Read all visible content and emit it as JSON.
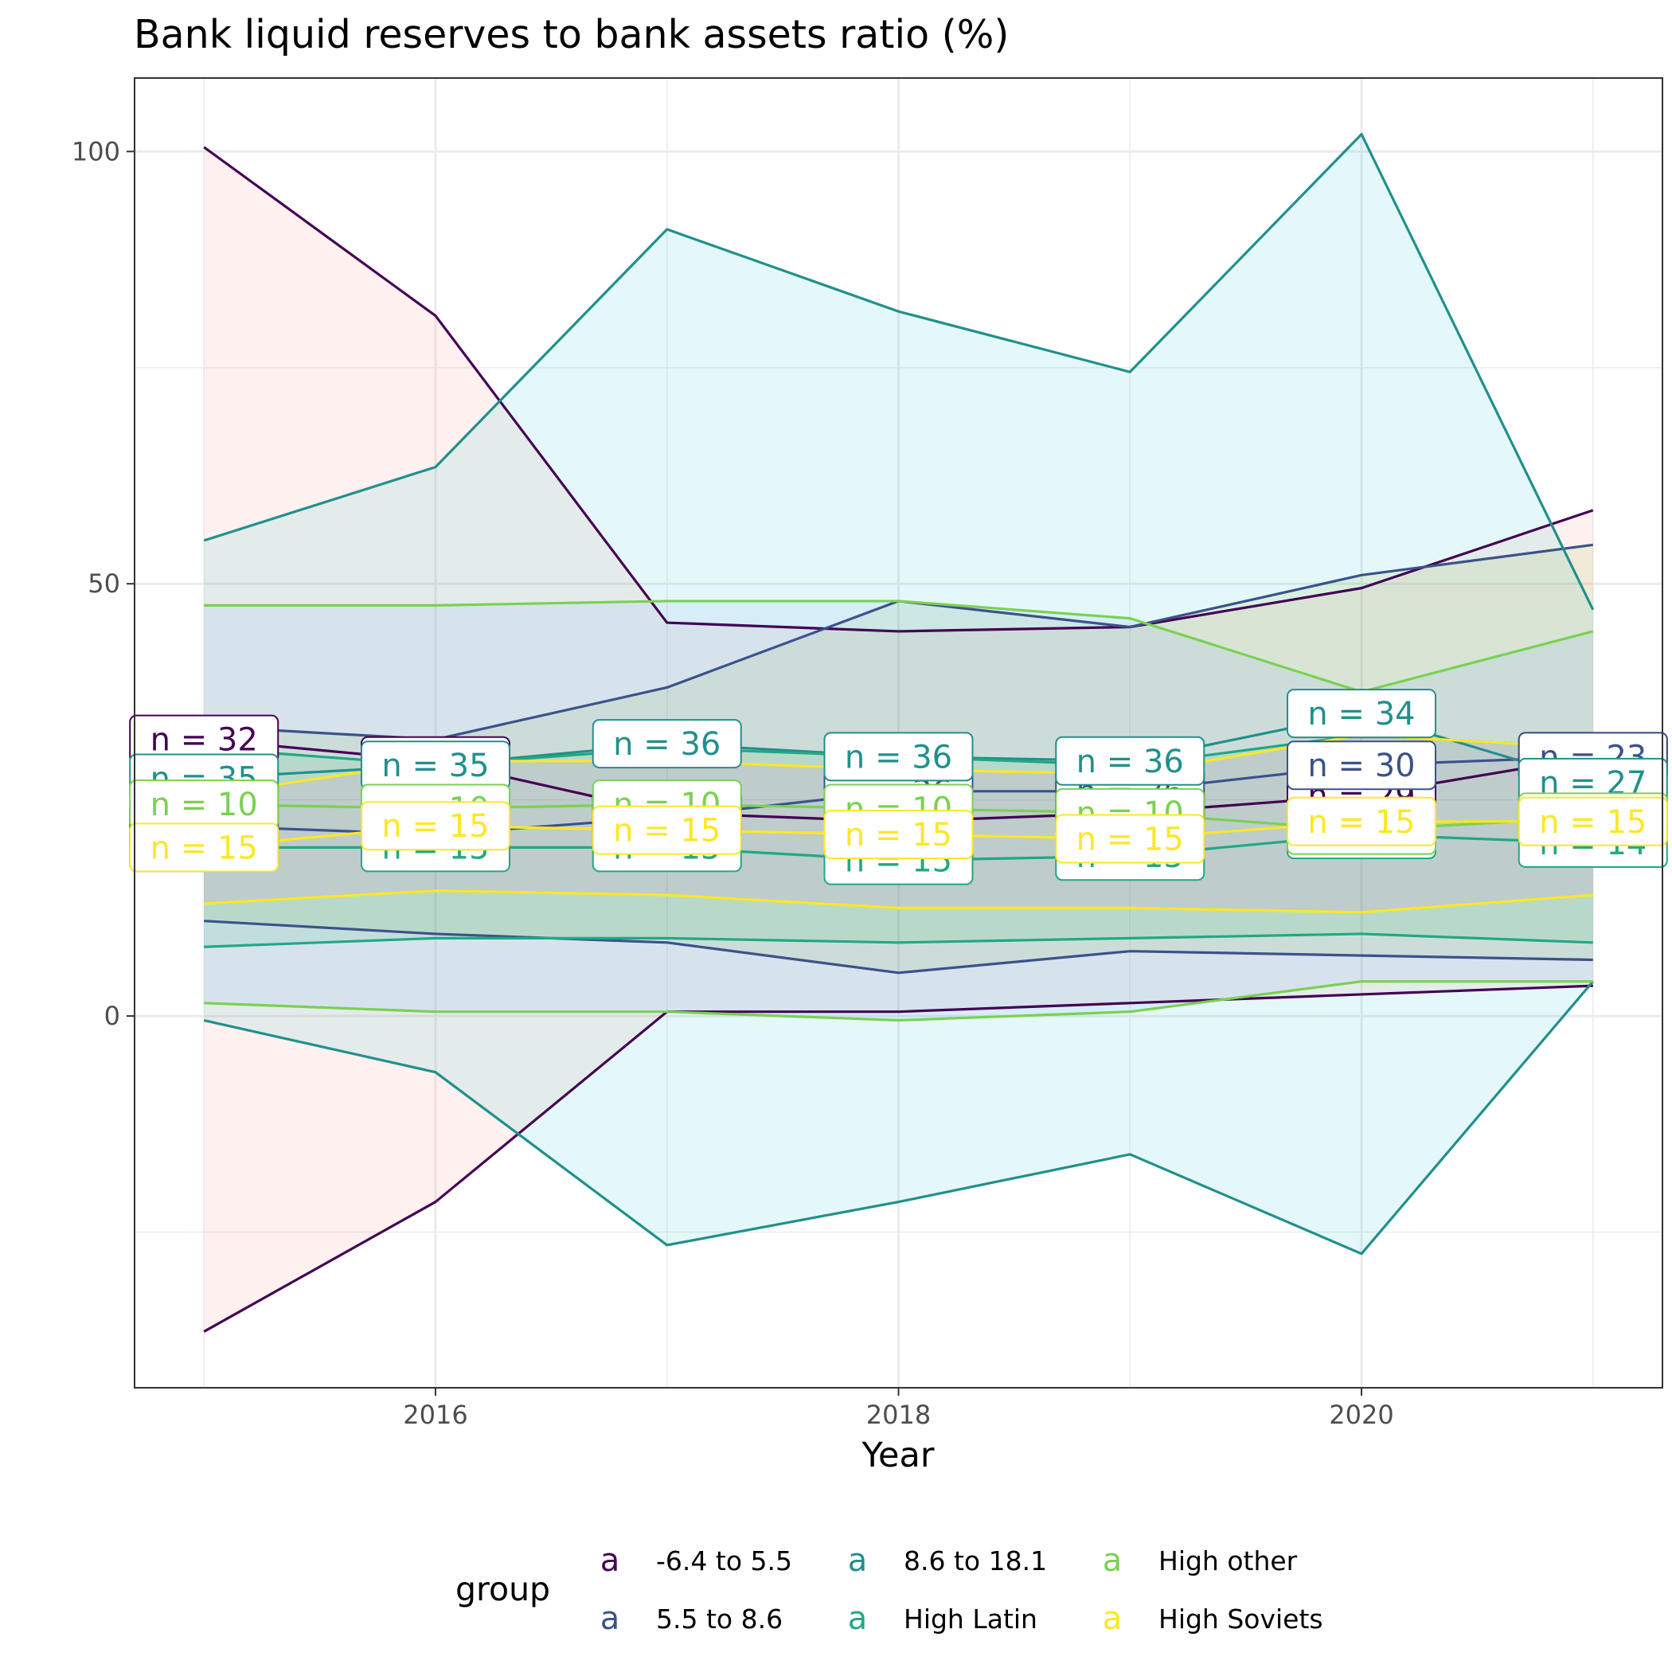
{
  "chart_data": {
    "type": "line",
    "title": "Bank liquid reserves to bank assets ratio (%)",
    "xlabel": "Year",
    "ylabel": "",
    "x": [
      2015,
      2016,
      2017,
      2018,
      2019,
      2020,
      2021
    ],
    "xlim": [
      2014.7,
      2021.3
    ],
    "ylim": [
      -43,
      108.5
    ],
    "x_ticks": [
      2016,
      2018,
      2020
    ],
    "x_tick_labels": [
      "2016",
      "2018",
      "2020"
    ],
    "y_ticks": [
      0,
      50,
      100
    ],
    "y_tick_labels": [
      "0",
      "50",
      "100"
    ],
    "y_minor_ticks": [
      -25,
      25,
      75
    ],
    "grid": true,
    "legend": {
      "title": "group",
      "position": "bottom",
      "key_glyph": "a"
    },
    "series": [
      {
        "name": "-6.4 to 5.5",
        "color": "#440154",
        "fill": "#F8766D",
        "mean": [
          32,
          29.5,
          23.5,
          22.5,
          23.5,
          25.5,
          30
        ],
        "upper": [
          100.5,
          81,
          45.5,
          44.5,
          45,
          49.5,
          58.5
        ],
        "lower": [
          -36.5,
          -21.5,
          0.5,
          0.5,
          1.5,
          2.5,
          3.5
        ],
        "n": [
          "n = 32",
          "n = 31",
          "n = 31",
          "n = 31",
          "n = 31",
          "n = 29",
          "n = 23"
        ]
      },
      {
        "name": "5.5 to 8.6",
        "color": "#3B528B",
        "fill": "#7CAE00",
        "mean": [
          22,
          21,
          23,
          26,
          26,
          29,
          30
        ],
        "upper": [
          33.5,
          32,
          38,
          48,
          45,
          51,
          54.5
        ],
        "lower": [
          11,
          9.5,
          8.5,
          5,
          7.5,
          7,
          6.5
        ],
        "n": [
          "n = 34",
          "n = 35",
          "n = 36",
          "n = 36",
          "n = 36",
          "n = 30",
          "n = 23"
        ]
      },
      {
        "name": "8.6 to 18.1",
        "color": "#21908C",
        "fill": "#00BFC4",
        "mean": [
          27.5,
          29,
          31.5,
          30,
          29.5,
          35,
          27
        ],
        "upper": [
          55,
          63.5,
          91,
          81.5,
          74.5,
          102,
          47
        ],
        "lower": [
          -0.5,
          -6.5,
          -26.5,
          -21.5,
          -16,
          -27.5,
          4
        ],
        "n": [
          "n = 35",
          "n = 35",
          "n = 36",
          "n = 36",
          "n = 36",
          "n = 34",
          "n = 27"
        ]
      },
      {
        "name": "High Latin",
        "color": "#22A884",
        "fill": "#00BA38",
        "mean": [
          19.5,
          19.5,
          19.5,
          18,
          18.5,
          21,
          20
        ],
        "upper": [
          31,
          29,
          31,
          30,
          29,
          32.5,
          31
        ],
        "lower": [
          8,
          9,
          9,
          8.5,
          9,
          9.5,
          8.5
        ],
        "n": [
          "n = 15",
          "n = 15",
          "n = 15",
          "n = 15",
          "n = 15",
          "n = 15",
          "n = 14"
        ]
      },
      {
        "name": "High other",
        "color": "#7AD151",
        "fill": "#619CFF",
        "mean": [
          24.5,
          24,
          24.5,
          24,
          23.5,
          21.5,
          23
        ],
        "upper": [
          47.5,
          47.5,
          48,
          48,
          46,
          37.5,
          44.5
        ],
        "lower": [
          1.5,
          0.5,
          0.5,
          -0.5,
          0.5,
          4,
          4
        ],
        "n": [
          "n = 10",
          "n = 10",
          "n = 10",
          "n = 10",
          "n = 10",
          "n = 10",
          "n = 10"
        ]
      },
      {
        "name": "High Soviets",
        "color": "#FDE725",
        "fill": "#F564E3",
        "mean": [
          19.5,
          22,
          21.5,
          21,
          20.5,
          22.5,
          22.5
        ],
        "upper": [
          25.5,
          29.5,
          29.5,
          28.5,
          28,
          32.5,
          31
        ],
        "lower": [
          13,
          14.5,
          14,
          12.5,
          12.5,
          12,
          14
        ],
        "n": [
          "n = 15",
          "n = 15",
          "n = 15",
          "n = 15",
          "n = 15",
          "n = 15",
          "n = 15"
        ]
      }
    ]
  }
}
